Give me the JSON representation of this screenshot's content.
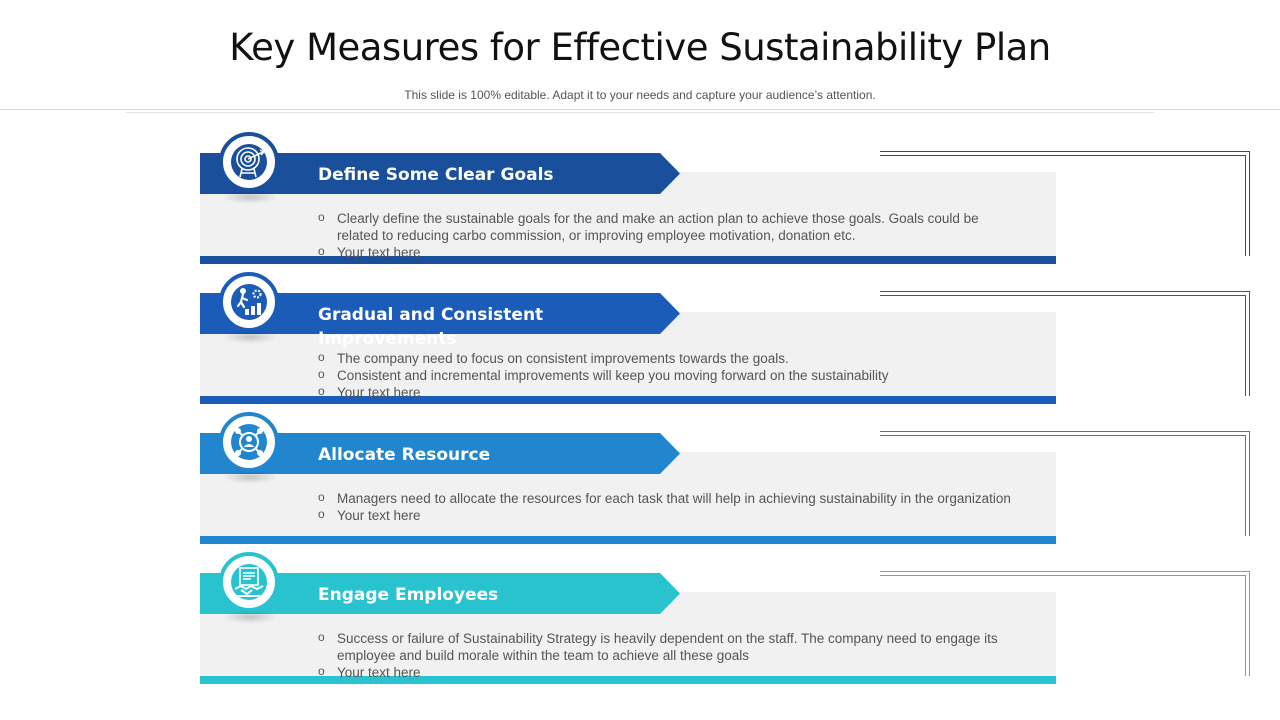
{
  "slide": {
    "title": "Key Measures for Effective Sustainability Plan",
    "subtitle": "This slide is 100% editable. Adapt it to your needs and capture your audience’s attention."
  },
  "cards": [
    {
      "heading": "Define Some Clear Goals",
      "icon": "target-goal-icon",
      "color": "#1a4f9c",
      "bullets": [
        "Clearly define the sustainable goals for the and make an action plan to achieve those goals. Goals could be related to reducing carbo commission, or improving employee motivation, donation etc.",
        "Your text here"
      ]
    },
    {
      "heading": "Gradual and Consistent Improvements",
      "icon": "growth-steps-icon",
      "color": "#1a5cb7",
      "bullets": [
        "The company need to focus on consistent improvements towards the goals.",
        "Consistent and incremental improvements will keep you moving forward on the sustainability",
        "Your text here"
      ]
    },
    {
      "heading": "Allocate Resource",
      "icon": "resource-network-icon",
      "color": "#2286cf",
      "bullets": [
        "Managers need to allocate the resources for each task that will help in achieving sustainability in the organization",
        "Your text here"
      ]
    },
    {
      "heading": "Engage Employees",
      "icon": "handshake-contract-icon",
      "color": "#29c3cf",
      "bullets": [
        "Success or failure of Sustainability Strategy is heavily dependent on the staff. The company need to engage its employee and build morale within the team to achieve all these goals",
        "Your text here"
      ]
    }
  ]
}
